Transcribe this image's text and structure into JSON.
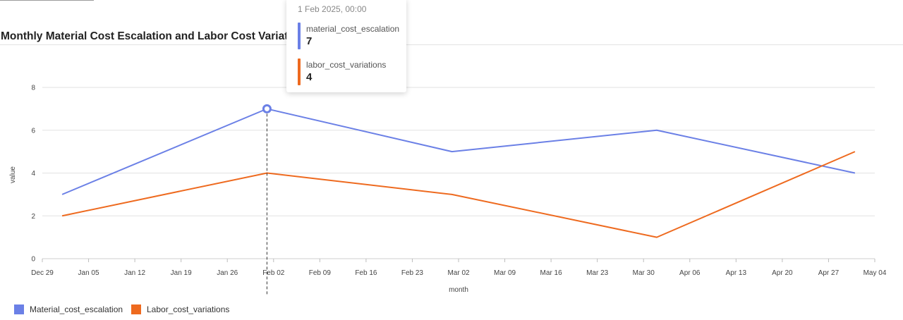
{
  "chart_data": {
    "type": "line",
    "title": "Monthly Material Cost Escalation and Labor Cost Variations",
    "xlabel": "month",
    "ylabel": "value",
    "ylim": [
      0,
      8
    ],
    "y_ticks": [
      "0",
      "2",
      "4",
      "6",
      "8"
    ],
    "x_range": [
      "2024-12-29",
      "2025-05-04"
    ],
    "x_ticks": [
      "Dec 29",
      "Jan 05",
      "Jan 12",
      "Jan 19",
      "Jan 26",
      "Feb 02",
      "Feb 09",
      "Feb 16",
      "Feb 23",
      "Mar 02",
      "Mar 09",
      "Mar 16",
      "Mar 23",
      "Mar 30",
      "Apr 06",
      "Apr 13",
      "Apr 20",
      "Apr 27",
      "May 04"
    ],
    "x": [
      "2025-01-01",
      "2025-02-01",
      "2025-03-01",
      "2025-04-01",
      "2025-05-01"
    ],
    "grid": true,
    "legend_position": "bottom-left",
    "series": [
      {
        "name": "material_cost_escalation",
        "color": "#6b80e6",
        "values": [
          3,
          7,
          5,
          6,
          4
        ]
      },
      {
        "name": "labor_cost_variations",
        "color": "#ee6a1f",
        "values": [
          2,
          4,
          3,
          1,
          5
        ]
      }
    ]
  },
  "tooltip": {
    "date": "1 Feb 2025, 00:00",
    "rows": [
      {
        "name": "material_cost_escalation",
        "value": "7"
      },
      {
        "name": "labor_cost_variations",
        "value": "4"
      }
    ]
  },
  "legend": {
    "items": [
      {
        "label": "Material_cost_escalation"
      },
      {
        "label": "Labor_cost_variations"
      }
    ]
  }
}
